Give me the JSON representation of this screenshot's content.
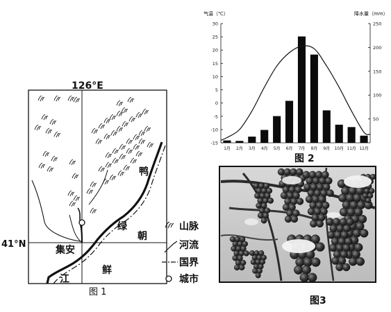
{
  "figure1": {
    "caption": "图 1",
    "lon_label": "126°E",
    "lat_label": "41°N",
    "city": "集安",
    "place_labels": [
      "鸭",
      "绿",
      "江",
      "朝",
      "鲜"
    ],
    "legend": [
      {
        "icon": "mountain-icon",
        "label": "山脉"
      },
      {
        "icon": "river-icon",
        "label": "河流"
      },
      {
        "icon": "border-icon",
        "label": "国界"
      },
      {
        "icon": "city-icon",
        "label": "城市"
      }
    ]
  },
  "figure2": {
    "caption": "图 2"
  },
  "figure3": {
    "caption": "图3",
    "icon": "grape-photo-icon"
  },
  "chart_data": {
    "type": "bar",
    "left_axis_label": "气温（℃）",
    "right_axis_label": "降水量（mm）",
    "categories": [
      "1月",
      "2月",
      "3月",
      "4月",
      "5月",
      "6月",
      "7月",
      "8月",
      "9月",
      "10月",
      "11月",
      "12月"
    ],
    "left_ticks": [
      "30",
      "25",
      "20",
      "15",
      "10",
      "5",
      "0",
      "-5",
      "-10",
      "-15"
    ],
    "right_ticks": [
      "250",
      "200",
      "150",
      "100",
      "50"
    ],
    "left_range": [
      -15,
      30
    ],
    "right_range": [
      0,
      250
    ],
    "series": [
      {
        "type": "bar",
        "axis": "right",
        "values": [
          5,
          4,
          13,
          27,
          56,
          88,
          223,
          185,
          68,
          38,
          33,
          15
        ]
      },
      {
        "type": "line",
        "axis": "left",
        "values": [
          -13,
          -10,
          -3,
          6,
          14,
          19,
          21.5,
          20.5,
          14,
          6,
          -3,
          -11
        ]
      }
    ]
  }
}
